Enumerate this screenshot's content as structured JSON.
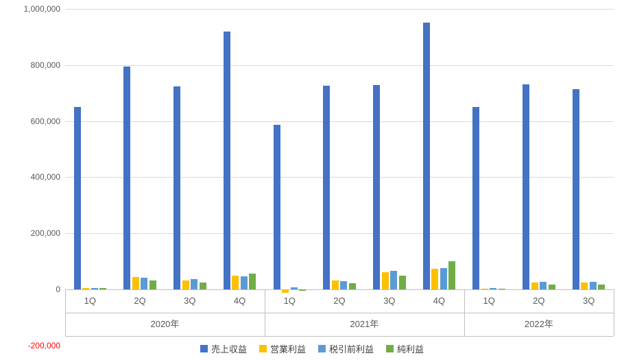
{
  "chart_data": {
    "type": "bar",
    "title": "",
    "grid": true,
    "legend_position": "bottom",
    "colors": {
      "gridline": "#D9D9D9",
      "axis_line": "#BFBFBF",
      "tick_label": "#595959",
      "negative_tick_label": "#FF0000"
    },
    "y_axis": {
      "min": -200000,
      "max": 1000000,
      "step": 200000,
      "ticks": [
        {
          "value": 1000000,
          "label": "1,000,000"
        },
        {
          "value": 800000,
          "label": "800,000"
        },
        {
          "value": 600000,
          "label": "600,000"
        },
        {
          "value": 400000,
          "label": "400,000"
        },
        {
          "value": 200000,
          "label": "200,000"
        },
        {
          "value": 0,
          "label": "0"
        },
        {
          "value": -200000,
          "label": "-200,000"
        }
      ]
    },
    "x_axis": {
      "groups": [
        {
          "label": "2020年",
          "quarters": [
            "1Q",
            "2Q",
            "3Q",
            "4Q"
          ]
        },
        {
          "label": "2021年",
          "quarters": [
            "1Q",
            "2Q",
            "3Q",
            "4Q"
          ]
        },
        {
          "label": "2022年",
          "quarters": [
            "1Q",
            "2Q",
            "3Q"
          ]
        }
      ]
    },
    "series": [
      {
        "name": "売上収益",
        "color": "#4472C4",
        "values": [
          650000,
          795000,
          725000,
          920000,
          587000,
          726000,
          729000,
          951000,
          650000,
          731000,
          714000
        ]
      },
      {
        "name": "営業利益",
        "color": "#FFC000",
        "values": [
          4000,
          44000,
          33000,
          50000,
          -13000,
          33000,
          62000,
          73000,
          2000,
          24000,
          25000
        ]
      },
      {
        "name": "税引前利益",
        "color": "#5B9BD5",
        "values": [
          5000,
          41000,
          36000,
          46000,
          7000,
          30000,
          67000,
          76000,
          6000,
          26000,
          26000
        ]
      },
      {
        "name": "純利益",
        "color": "#70AD47",
        "values": [
          4000,
          33000,
          25000,
          57000,
          -4000,
          22000,
          48000,
          101000,
          2000,
          17000,
          18000
        ]
      }
    ]
  }
}
